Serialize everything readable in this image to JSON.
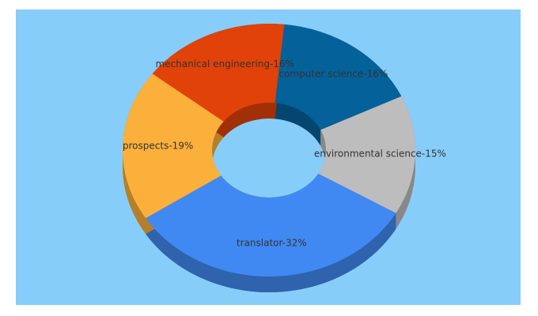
{
  "chart_data": {
    "type": "donut3d",
    "values": [
      16,
      15,
      32,
      19,
      16
    ],
    "value_labels": [
      "computer science-16%",
      "environmental science-15%",
      "translator-32%",
      "prospects-19%",
      "mechanical engineering-16%"
    ],
    "colors": [
      "#05619a",
      "#bdbdbd",
      "#4189f2",
      "#fbb03b",
      "#e0420a"
    ]
  }
}
